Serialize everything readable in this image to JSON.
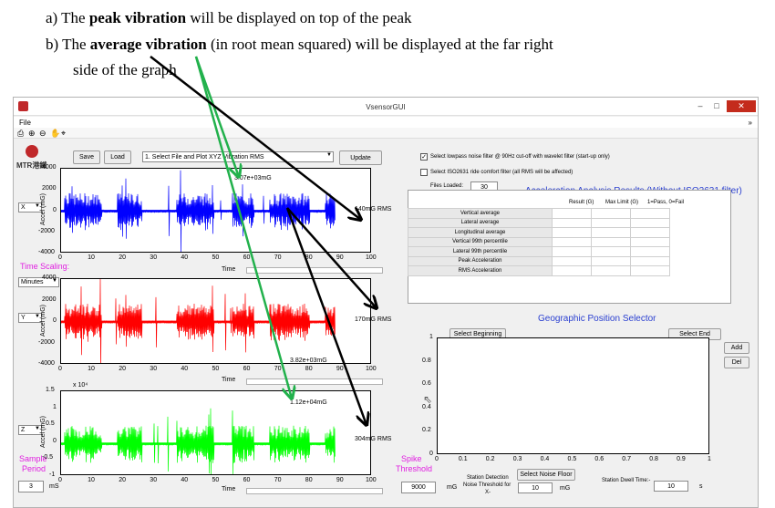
{
  "notes": {
    "a_prefix": "a)  The ",
    "a_bold": "peak vibration",
    "a_rest": " will be displayed on top of the peak",
    "b_prefix": "b)  The ",
    "b_bold": "average vibration",
    "b_rest": " (in root mean squared) will be displayed at the far right",
    "b_line2": "side of the graph"
  },
  "window": {
    "title": "VsensorGUI",
    "menu_file": "File",
    "min": "–",
    "restore": "□",
    "close": "✕",
    "more": "»"
  },
  "toolbar": {
    "icons": [
      "printer-icon",
      "zoom-in-icon",
      "zoom-out-icon",
      "pan-icon",
      "data-cursor-icon"
    ],
    "glyphs": [
      "⎙",
      "⊕",
      "⊖",
      "✋",
      "⌖"
    ]
  },
  "logo": {
    "name": "MTR港鐵"
  },
  "controls": {
    "save": "Save",
    "load": "Load",
    "action_select": "1. Select File and Plot XYZ Vibration RMS",
    "update": "Update",
    "axis1_select": "X",
    "axis2_select": "Y",
    "axis3_select": "Z",
    "time_scaling_label": "Time Scaling:",
    "time_scaling_value": "Minutes",
    "sample_label": "Sample",
    "period_label": "Period",
    "sample_value": "3",
    "sample_unit": "mS",
    "spike_label": "Spike",
    "threshold_label": "Threshold",
    "spike_value": "9000",
    "spike_unit": "mG"
  },
  "plots": [
    {
      "ylabel": "Accel (mG)",
      "yticks": [
        "4000",
        "2000",
        "0",
        "-2000",
        "-4000"
      ],
      "xticks": [
        "0",
        "10",
        "20",
        "30",
        "40",
        "50",
        "60",
        "70",
        "80",
        "90",
        "100"
      ],
      "xlabel": "Time",
      "peak_label": "3.07e+03mG",
      "rms_label": "140mG RMS",
      "color": "#0000ff"
    },
    {
      "ylabel": "Accel (mG)",
      "yticks": [
        "4000",
        "2000",
        "0",
        "-2000",
        "-4000"
      ],
      "xticks": [
        "0",
        "10",
        "20",
        "30",
        "40",
        "50",
        "60",
        "70",
        "80",
        "90",
        "100"
      ],
      "xlabel": "Time",
      "peak_label": "3.82e+03mG",
      "rms_label": "170mG RMS",
      "color": "#ff0000"
    },
    {
      "ylabel": "Accel (mG)",
      "exponent": "x 10⁴",
      "yticks": [
        "1.5",
        "1",
        "0.5",
        "0",
        "-0.5",
        "-1"
      ],
      "xticks": [
        "0",
        "10",
        "20",
        "30",
        "40",
        "50",
        "60",
        "70",
        "80",
        "90",
        "100"
      ],
      "xlabel": "Time",
      "peak_label": "1.12e+04mG",
      "rms_label": "304mG RMS",
      "color": "#00ff00"
    }
  ],
  "filters": {
    "lowpass": "Select lowpass noise filter @ 90Hz cut-off with wavelet filter (start-up only)",
    "iso": "Select ISO2631 ride comfort filter (all RMS will be affected)",
    "files_loaded_label": "Files Loaded:",
    "files_loaded_value": "30"
  },
  "results": {
    "title": "Acceleration Analysis Results (Without ISO2631 filter)",
    "columns": [
      "Result (G)",
      "Max Limit (G)",
      "1=Pass, 0=Fail"
    ],
    "rows": [
      "Vertical average",
      "Lateral average",
      "Longitudinal average",
      "Vertical 99th percentile",
      "Lateral 99th percentile",
      "Peak Acceleration",
      "RMS Acceleration"
    ]
  },
  "geo": {
    "title": "Geographic Position Selector",
    "select_beginning": "Select Beginning",
    "select_end": "Select End",
    "add": "Add",
    "del": "Del",
    "yticks": [
      "1",
      "0.8",
      "0.6",
      "0.4",
      "0.2",
      "0"
    ],
    "xticks": [
      "0",
      "0.1",
      "0.2",
      "0.3",
      "0.4",
      "0.5",
      "0.6",
      "0.7",
      "0.8",
      "0.9",
      "1"
    ]
  },
  "station": {
    "detection_label_1": "Station Detection",
    "detection_label_2": "Noise Threshold for",
    "detection_label_3": "X-",
    "select_noise_floor": "Select Noise Floor",
    "threshold_value": "10",
    "threshold_unit": "mG",
    "dwell_label": "Station Dwell Time:-",
    "dwell_value": "10",
    "dwell_unit": "s"
  },
  "annotation_colors": {
    "arrow_black": "#000000",
    "arrow_green": "#22b14c"
  }
}
